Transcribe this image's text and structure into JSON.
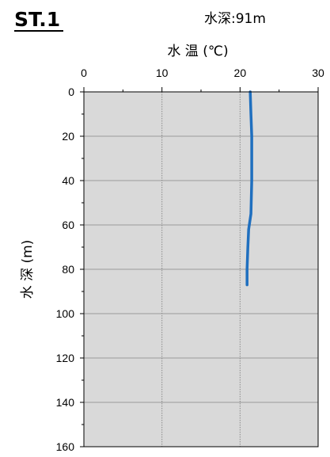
{
  "header": {
    "station": "ST.1",
    "water_depth_label": "水深:91m"
  },
  "colors": {
    "plot_background": "#d9d9d9",
    "series_line": "#1f6fbf",
    "gridline_horizontal": "#9a9a9a",
    "gridline_vertical": "#8c8c8c"
  },
  "chart_data": {
    "type": "line",
    "title": "",
    "xlabel": "水 温 (℃)",
    "ylabel": "水 深 (m)",
    "xlim": [
      0,
      30
    ],
    "ylim": [
      0,
      160
    ],
    "y_inverted": true,
    "x_axis_position": "top",
    "x_ticks": [
      0,
      10,
      20,
      30
    ],
    "y_ticks": [
      0,
      20,
      40,
      60,
      80,
      100,
      120,
      140,
      160
    ],
    "grid": true,
    "legend": "none",
    "series": [
      {
        "x": [
          21.3,
          21.4,
          21.5,
          21.5,
          21.4,
          21.1,
          21.0,
          20.9,
          20.9
        ],
        "y": [
          0,
          10,
          20,
          40,
          55,
          62,
          70,
          80,
          87
        ]
      }
    ]
  }
}
